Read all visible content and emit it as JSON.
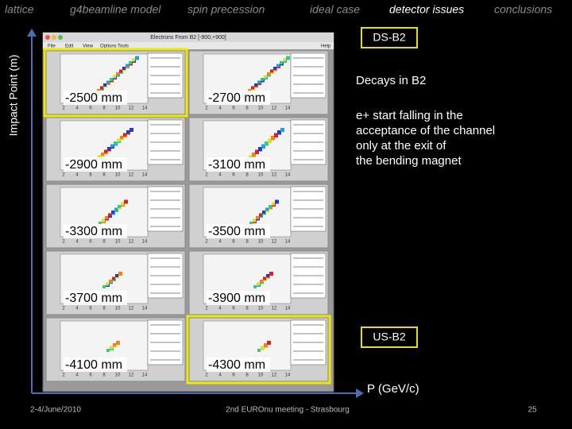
{
  "nav": [
    "lattice",
    "g4beamline model",
    "spin precession",
    "ideal case",
    "detector issues",
    "conclusions"
  ],
  "axis_label": "Impact Point (m)",
  "x_axis_label": "P (GeV/c)",
  "window": {
    "title": "Electrons From B2 [-900,+900]",
    "menu": [
      "File",
      "Edit",
      "View",
      "Options",
      "Tools",
      "Help"
    ],
    "panel_xticks": [
      "2",
      "4",
      "6",
      "8",
      "10",
      "12",
      "14"
    ],
    "panels": [
      "-2500 mm",
      "-2700 mm",
      "-2900 mm",
      "-3100 mm",
      "-3300 mm",
      "-3500 mm",
      "-3700 mm",
      "-3900 mm",
      "-4100 mm",
      "-4300 mm"
    ]
  },
  "callouts": {
    "top": "DS-B2",
    "bottom": "US-B2"
  },
  "notes": {
    "heading": "Decays in B2",
    "body": [
      "e+ start falling in the",
      "acceptance of the channel",
      "only at the exit of",
      "the bending magnet"
    ]
  },
  "footer": {
    "date": "2-4/June/2010",
    "event": "2nd EUROnu meeting - Strasbourg",
    "page": "25"
  }
}
